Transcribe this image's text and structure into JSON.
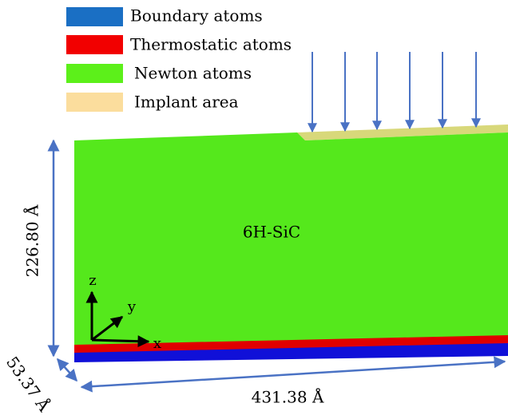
{
  "legend": [
    {
      "label": "Boundary atoms"
    },
    {
      "label": "Thermostatic atoms"
    },
    {
      "label": "Newton atoms"
    },
    {
      "label": "Implant area"
    }
  ],
  "material": "6H-SiC",
  "dimensions": {
    "height": "226.80 Å",
    "depth": "53.37 Å",
    "length": "431.38 Å"
  },
  "axes": {
    "x": "x",
    "y": "y",
    "z": "z"
  }
}
